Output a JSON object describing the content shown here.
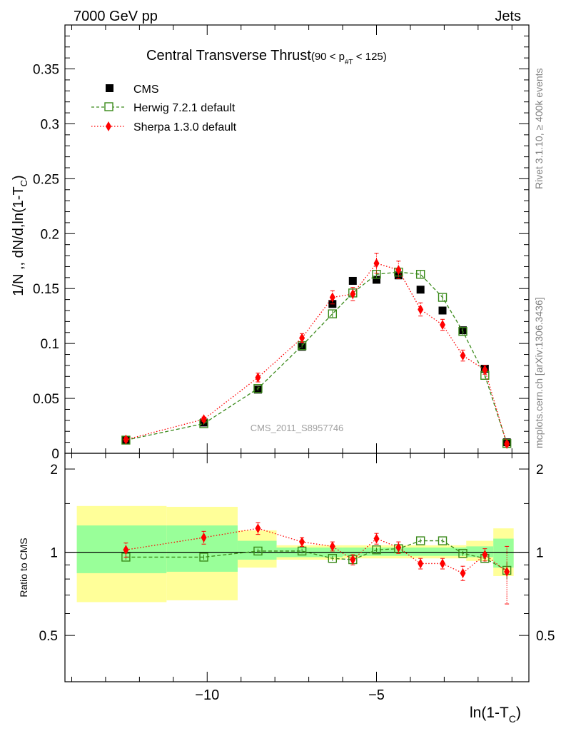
{
  "header": {
    "left": "7000 GeV pp",
    "right": "Jets"
  },
  "side": {
    "rivet": "Rivet 3.1.10, ≥ 400k events",
    "mcplots": "mcplots.cern.ch [arXiv:1306.3436]"
  },
  "watermark": "CMS_2011_S8957746",
  "colors": {
    "cms": "#000000",
    "herwig": "#3a8a1a",
    "sherpa": "#ff0000",
    "band_yellow": "#ffff99",
    "band_green": "#99ff99"
  },
  "chart_data": [
    {
      "type": "scatter",
      "title": "Central Transverse Thrust",
      "title_sub": "(90 < p",
      "title_sub_index": "#T",
      "title_sub_end": " < 125)",
      "xlabel": "ln(1-T",
      "xlabel_sub": "C",
      "xlabel_end": ")",
      "ylabel": "1/N ,, dN/d,ln(1-T",
      "ylabel_sub": "C",
      "ylabel_end": ")",
      "xlim": [
        -14.2,
        -0.5
      ],
      "ylim": [
        0,
        0.39
      ],
      "yticks": [
        0,
        0.05,
        0.1,
        0.15,
        0.2,
        0.25,
        0.3,
        0.35
      ],
      "ytick_labels": [
        "0",
        "0.05",
        "0.1",
        "0.15",
        "0.2",
        "0.25",
        "0.3",
        "0.35"
      ],
      "x": [
        -12.4,
        -10.1,
        -8.5,
        -7.2,
        -6.3,
        -5.7,
        -5.0,
        -4.35,
        -3.7,
        -3.05,
        -2.45,
        -1.8,
        -1.15
      ],
      "series": [
        {
          "name": "CMS",
          "style": "filled-square",
          "values": [
            0.012,
            0.028,
            0.058,
            0.097,
            0.136,
            0.157,
            0.158,
            0.162,
            0.149,
            0.13,
            0.112,
            0.077,
            0.01
          ]
        },
        {
          "name": "Herwig 7.2.1 default",
          "style": "open-square-dashed",
          "values": [
            0.012,
            0.027,
            0.059,
            0.098,
            0.127,
            0.146,
            0.163,
            0.165,
            0.163,
            0.142,
            0.111,
            0.071,
            0.009
          ],
          "errors": [
            0.001,
            0.001,
            0.002,
            0.002,
            0.003,
            0.003,
            0.004,
            0.004,
            0.003,
            0.003,
            0.003,
            0.002,
            0.001
          ]
        },
        {
          "name": "Sherpa 1.3.0 default",
          "style": "diamond-dotted",
          "values": [
            0.0125,
            0.031,
            0.069,
            0.105,
            0.142,
            0.145,
            0.173,
            0.167,
            0.131,
            0.117,
            0.089,
            0.076,
            0.0085
          ],
          "errors": [
            0.002,
            0.002,
            0.004,
            0.004,
            0.006,
            0.006,
            0.009,
            0.008,
            0.006,
            0.005,
            0.005,
            0.004,
            0.002
          ]
        }
      ]
    },
    {
      "type": "line",
      "ylabel": "Ratio to CMS",
      "xlim": [
        -14.2,
        -0.5
      ],
      "ylim": [
        0.34,
        2.28
      ],
      "yticks": [
        0.5,
        1,
        2
      ],
      "ytick_labels": [
        "0.5",
        "1",
        "2"
      ],
      "xticks": [
        -10,
        -5
      ],
      "xtick_labels": [
        "−10",
        "−5"
      ],
      "reference": 1,
      "bands": [
        {
          "x0": -13.85,
          "x1": -11.2,
          "yellow": [
            0.66,
            1.47
          ],
          "green": [
            0.84,
            1.25
          ]
        },
        {
          "x0": -11.2,
          "x1": -9.1,
          "yellow": [
            0.67,
            1.46
          ],
          "green": [
            0.85,
            1.25
          ]
        },
        {
          "x0": -9.1,
          "x1": -7.95,
          "yellow": [
            0.88,
            1.2
          ],
          "green": [
            0.94,
            1.1
          ]
        },
        {
          "x0": -7.95,
          "x1": -6.0,
          "yellow": [
            0.94,
            1.06
          ],
          "green": [
            0.96,
            1.04
          ]
        },
        {
          "x0": -6.0,
          "x1": -2.35,
          "yellow": [
            0.95,
            1.06
          ],
          "green": [
            0.97,
            1.04
          ]
        },
        {
          "x0": -2.35,
          "x1": -1.55,
          "yellow": [
            0.93,
            1.1
          ],
          "green": [
            0.96,
            1.05
          ]
        },
        {
          "x0": -1.55,
          "x1": -0.95,
          "yellow": [
            0.82,
            1.22
          ],
          "green": [
            0.88,
            1.12
          ]
        }
      ],
      "x": [
        -12.4,
        -10.1,
        -8.5,
        -7.2,
        -6.3,
        -5.7,
        -5.0,
        -4.35,
        -3.7,
        -3.05,
        -2.45,
        -1.8,
        -1.15
      ],
      "series": [
        {
          "name": "Herwig 7.2.1 default",
          "style": "open-square-dashed",
          "values": [
            0.96,
            0.96,
            1.01,
            1.01,
            0.95,
            0.94,
            1.02,
            1.03,
            1.1,
            1.1,
            0.99,
            0.95,
            0.86
          ],
          "errors": [
            0.02,
            0.02,
            0.02,
            0.02,
            0.02,
            0.02,
            0.02,
            0.02,
            0.02,
            0.02,
            0.02,
            0.03,
            0.06
          ]
        },
        {
          "name": "Sherpa 1.3.0 default",
          "style": "diamond-dotted",
          "values": [
            1.02,
            1.13,
            1.22,
            1.09,
            1.05,
            0.94,
            1.12,
            1.04,
            0.91,
            0.91,
            0.84,
            0.98,
            0.85
          ],
          "errors": [
            0.06,
            0.06,
            0.06,
            0.04,
            0.04,
            0.04,
            0.05,
            0.05,
            0.04,
            0.04,
            0.05,
            0.05,
            0.2
          ]
        }
      ]
    }
  ]
}
